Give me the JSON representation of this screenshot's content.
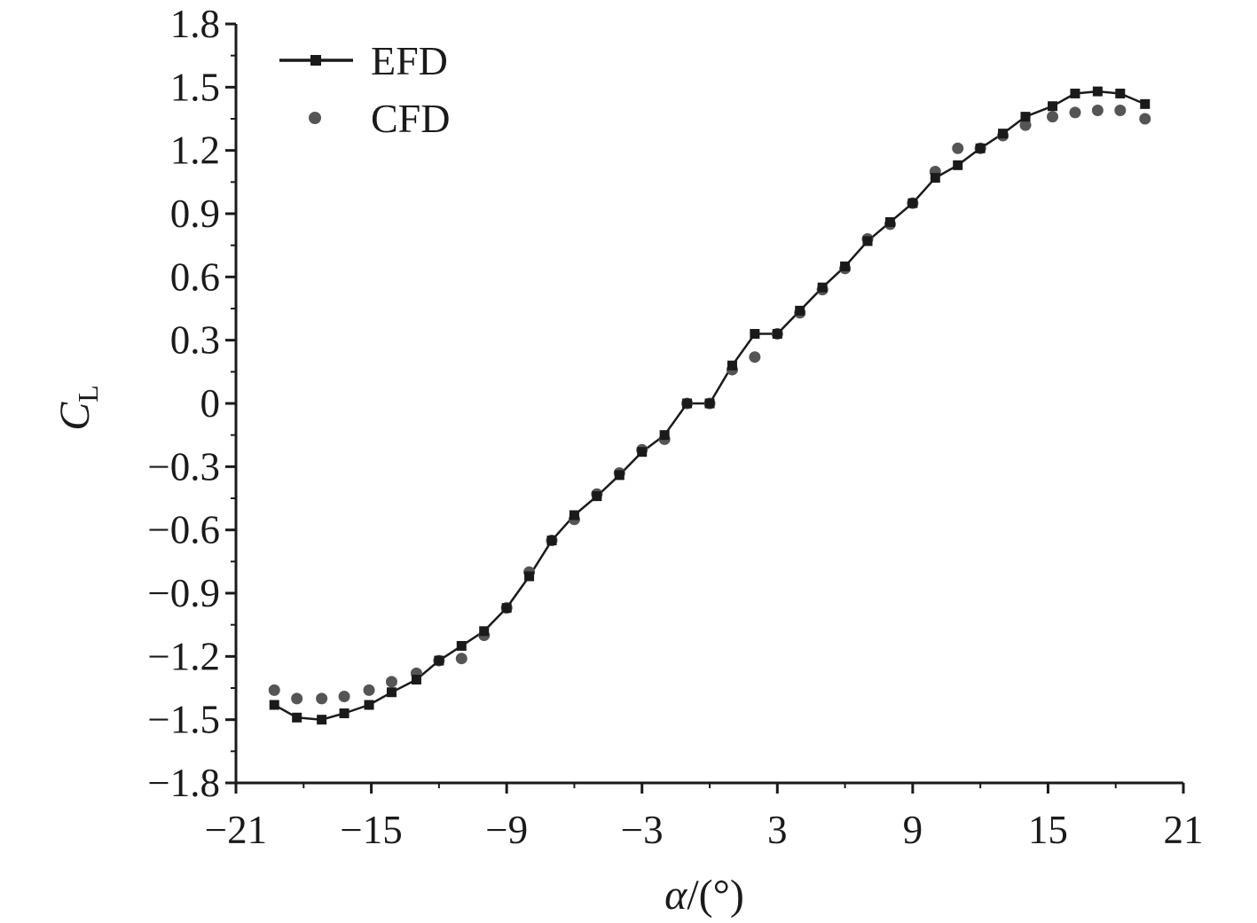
{
  "chart_data": {
    "type": "scatter",
    "xlabel": {
      "italic": "α",
      "rest": "/(°)"
    },
    "ylabel": {
      "main": "C",
      "sub": "L"
    },
    "xlim": [
      -21,
      21
    ],
    "ylim": [
      -1.8,
      1.8
    ],
    "x_ticks": [
      -21,
      -15,
      -9,
      -3,
      3,
      9,
      15,
      21
    ],
    "x_tick_labels": [
      "−21",
      "−15",
      "−9",
      "−3",
      "3",
      "9",
      "15",
      "21"
    ],
    "y_ticks": [
      1.8,
      1.5,
      1.2,
      0.9,
      0.6,
      0.3,
      0,
      -0.3,
      -0.6,
      -0.9,
      -1.2,
      -1.5,
      -1.8
    ],
    "y_tick_labels": [
      "1.8",
      "1.5",
      "1.2",
      "0.9",
      "0.6",
      "0.3",
      "0",
      "−0.3",
      "−0.6",
      "−0.9",
      "−1.2",
      "−1.5",
      "−1.8"
    ],
    "grid": false,
    "legend_position": "top-left",
    "series": [
      {
        "name": "EFD",
        "style": "line-square",
        "color": "#1a1a1a",
        "x": [
          -19.3,
          -18.3,
          -17.2,
          -16.2,
          -15.1,
          -14.1,
          -13.0,
          -12.0,
          -11.0,
          -10.0,
          -9.0,
          -8.0,
          -7.0,
          -6.0,
          -5.0,
          -4.0,
          -3.0,
          -2.0,
          -1.0,
          0.0,
          1.0,
          2.0,
          3.0,
          4.0,
          5.0,
          6.0,
          7.0,
          8.0,
          9.0,
          10.0,
          11.0,
          12.0,
          13.0,
          14.0,
          15.2,
          16.2,
          17.2,
          18.2,
          19.3
        ],
        "y": [
          -1.43,
          -1.49,
          -1.5,
          -1.47,
          -1.43,
          -1.37,
          -1.31,
          -1.22,
          -1.15,
          -1.08,
          -0.97,
          -0.82,
          -0.65,
          -0.53,
          -0.44,
          -0.34,
          -0.23,
          -0.15,
          0.0,
          0.0,
          0.18,
          0.33,
          0.33,
          0.44,
          0.55,
          0.65,
          0.77,
          0.86,
          0.95,
          1.07,
          1.13,
          1.21,
          1.28,
          1.36,
          1.41,
          1.47,
          1.48,
          1.47,
          1.42
        ]
      },
      {
        "name": "CFD",
        "style": "dots",
        "color": "#555555",
        "x": [
          -19.3,
          -18.3,
          -17.2,
          -16.2,
          -15.1,
          -14.1,
          -13.0,
          -12.0,
          -11.0,
          -10.0,
          -9.0,
          -8.0,
          -7.0,
          -6.0,
          -5.0,
          -4.0,
          -3.0,
          -2.0,
          -1.0,
          0.0,
          1.0,
          2.0,
          3.0,
          4.0,
          5.0,
          6.0,
          7.0,
          8.0,
          9.0,
          10.0,
          11.0,
          12.0,
          13.0,
          14.0,
          15.2,
          16.2,
          17.2,
          18.2,
          19.3
        ],
        "y": [
          -1.36,
          -1.4,
          -1.4,
          -1.39,
          -1.36,
          -1.32,
          -1.28,
          -1.22,
          -1.21,
          -1.1,
          -0.97,
          -0.8,
          -0.65,
          -0.55,
          -0.43,
          -0.33,
          -0.22,
          -0.17,
          0.0,
          0.0,
          0.16,
          0.22,
          0.33,
          0.43,
          0.54,
          0.64,
          0.78,
          0.85,
          0.95,
          1.1,
          1.21,
          1.21,
          1.27,
          1.32,
          1.36,
          1.38,
          1.39,
          1.39,
          1.35
        ]
      }
    ]
  }
}
